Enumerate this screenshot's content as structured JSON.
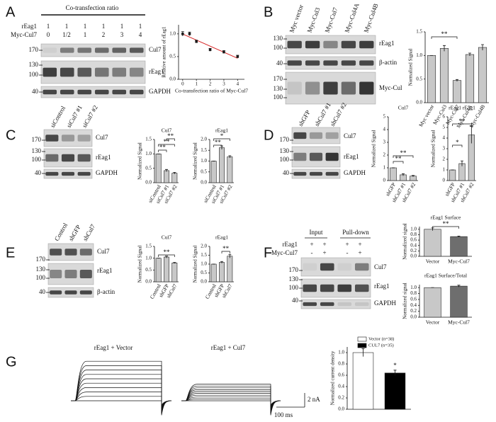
{
  "panel_letters": [
    "A",
    "B",
    "C",
    "D",
    "E",
    "F",
    "G"
  ],
  "blots": {
    "A": {
      "header": "Co-transfection ratio",
      "rows": [
        [
          "rEag1",
          "1",
          "1",
          "1",
          "1",
          "1",
          "1"
        ],
        [
          "Myc-Cul7",
          "0",
          "1/2",
          "1",
          "2",
          "3",
          "4"
        ]
      ],
      "markers": [
        "170",
        "130",
        "100",
        "40"
      ],
      "bands": [
        "Cul7",
        "rEag1",
        "GAPDH"
      ]
    },
    "B": {
      "lanes": [
        "Myc vector",
        "Myc-Cul3",
        "Myc-Cul7",
        "Myc-Cul4A",
        "Myc-Cul4B"
      ],
      "markers": [
        "130",
        "100",
        "40",
        "170",
        "130",
        "100"
      ],
      "bands": [
        "rEag1",
        "β-actin",
        "Myc-Cul"
      ]
    },
    "C": {
      "lanes": [
        "siControl",
        "siCul7 #1",
        "siCul7 #2"
      ],
      "markers": [
        "170",
        "130",
        "100",
        "40"
      ],
      "bands": [
        "Cul7",
        "rEag1",
        "GAPDH"
      ]
    },
    "D": {
      "lanes": [
        "shGFP",
        "shCul7 #1",
        "shCul7 #2"
      ],
      "markers": [
        "170",
        "130",
        "100",
        "40"
      ],
      "bands": [
        "Cul7",
        "rEag1",
        "GAPDH"
      ]
    },
    "E": {
      "lanes": [
        "Control",
        "shGFP",
        "shCul7"
      ],
      "markers": [
        "170",
        "130",
        "100",
        "40"
      ],
      "bands": [
        "Cul7",
        "rEag1",
        "β-actin"
      ]
    },
    "F": {
      "groups": [
        "Input",
        "Pull-down"
      ],
      "rows": [
        [
          "rEag1",
          "+",
          "+",
          "+",
          "+"
        ],
        [
          "Myc-Cul7",
          "-",
          "+",
          "-",
          "+"
        ]
      ],
      "markers": [
        "170",
        "130",
        "100",
        "40"
      ],
      "bands": [
        "Cul7",
        "rEag1",
        "GAPDH"
      ]
    }
  },
  "traces": {
    "titles": [
      "rEag1 + Vector",
      "rEag1 + Cul7"
    ],
    "scale": [
      "2 nA",
      "100 ms"
    ]
  },
  "chart_data": [
    {
      "type": "scatter",
      "x_label": "Co-transfection ratio of Myc-Cul7",
      "y_label": "Relative amount of rEag1",
      "x": [
        0,
        0.5,
        1,
        2,
        3,
        4
      ],
      "values": [
        1.0,
        1.0,
        0.83,
        0.65,
        0.6,
        0.5
      ],
      "errors": [
        0.05,
        0.04,
        0.03,
        0.03,
        0.03,
        0.03
      ],
      "color": "#222222",
      "line_color": "#d62020",
      "xlim": [
        -0.3,
        4.5
      ],
      "xticks": [
        0,
        1,
        2,
        3,
        4
      ],
      "ylim": [
        0,
        1.2
      ],
      "yticks": [
        {
          "value": 0,
          "label": "0.0"
        },
        0.5,
        {
          "value": 1,
          "label": "1.0"
        }
      ]
    },
    {
      "type": "bar",
      "y_label": "Normalized Signal",
      "categories": [
        "Myc vector",
        "Myc-Cul3",
        "Myc-Cul7",
        "Myc-Cul4A",
        "Myc-Cul4B"
      ],
      "values": [
        1.0,
        1.15,
        0.47,
        1.02,
        1.17
      ],
      "errors": [
        0,
        0.06,
        0.02,
        0.03,
        0.06
      ],
      "color": "#c8c8c8",
      "ylim": [
        0,
        1.5
      ],
      "yticks": [
        {
          "value": 0,
          "label": "0.0"
        },
        0.5,
        {
          "value": 1,
          "label": "1.0"
        },
        1.5
      ],
      "annotations": [
        "**"
      ]
    },
    {
      "type": "bar",
      "title": "Cul7",
      "y_label": "Normalized Signal",
      "categories": [
        "siControl",
        "siCul7 #1",
        "siCul7 #2"
      ],
      "values": [
        1.0,
        0.42,
        0.33
      ],
      "errors": [
        0,
        0.04,
        0.03
      ],
      "color": "#c8c8c8",
      "ylim": [
        0,
        1.5
      ],
      "yticks": [
        {
          "value": 0,
          "label": "0.0"
        },
        0.5,
        {
          "value": 1,
          "label": "1.0"
        },
        1.5
      ],
      "annotations": [
        "**",
        "**",
        "**"
      ]
    },
    {
      "type": "bar",
      "title": "rEag1",
      "y_label": "Normalized Signal",
      "categories": [
        "siControl",
        "siCul7 #1",
        "siCul7 #2"
      ],
      "values": [
        1.0,
        1.62,
        1.2
      ],
      "errors": [
        0,
        0.08,
        0.05
      ],
      "color": "#c8c8c8",
      "ylim": [
        0,
        2
      ],
      "yticks": [
        {
          "value": 0,
          "label": "0.0"
        },
        0.5,
        {
          "value": 1,
          "label": "1.0"
        },
        1.5,
        {
          "value": 2,
          "label": "2.0"
        }
      ],
      "annotations": [
        "**",
        "*"
      ]
    },
    {
      "type": "bar",
      "title": "Cul7",
      "y_label": "Normalized Signal",
      "categories": [
        "shGFP",
        "shCul7 #1",
        "shCul7 #2"
      ],
      "values": [
        1.0,
        0.45,
        0.35
      ],
      "errors": [
        0,
        0.08,
        0.05
      ],
      "color": "#c8c8c8",
      "ylim": [
        0,
        5
      ],
      "yticks": [
        0,
        1,
        2,
        3,
        4,
        5
      ],
      "annotations": [
        "**",
        "**"
      ]
    },
    {
      "type": "bar",
      "title": "rEag1 rEag1",
      "y_label": "Normalized Signal",
      "categories": [
        "shGFP",
        "shCul7 #1",
        "shCul7 #2"
      ],
      "values": [
        1.0,
        1.6,
        4.3
      ],
      "errors": [
        0,
        0.25,
        0.8
      ],
      "color": "#c8c8c8",
      "ylim": [
        0,
        6
      ],
      "yticks": [
        0,
        1,
        2,
        3,
        4,
        5,
        6
      ],
      "annotations": [
        "*",
        "**"
      ]
    },
    {
      "type": "bar",
      "title": "Cul7",
      "y_label": "Normalized Signal",
      "categories": [
        "Control",
        "shGFP",
        "shCul7"
      ],
      "values": [
        1.0,
        1.05,
        0.8
      ],
      "errors": [
        0,
        0.04,
        0.02
      ],
      "color": "#c8c8c8",
      "ylim": [
        0,
        1.5
      ],
      "yticks": [
        {
          "value": 0,
          "label": "0.0"
        },
        0.5,
        {
          "value": 1,
          "label": "1.0"
        },
        1.5
      ],
      "annotations": [
        "**"
      ]
    },
    {
      "type": "bar",
      "title": "rEag1",
      "y_label": "Normalized Signal",
      "categories": [
        "Control",
        "shGFP",
        "shCul7"
      ],
      "values": [
        1.0,
        1.1,
        1.45
      ],
      "errors": [
        0,
        0.05,
        0.1
      ],
      "color": "#c8c8c8",
      "ylim": [
        0,
        2
      ],
      "yticks": [
        {
          "value": 0,
          "label": "0.0"
        },
        0.5,
        {
          "value": 1,
          "label": "1.0"
        },
        1.5,
        {
          "value": 2,
          "label": "2.0"
        }
      ],
      "annotations": [
        "**"
      ]
    },
    {
      "type": "bar",
      "title": "rEag1 Surface",
      "y_label": "Normalized signal",
      "categories": [
        "Vector",
        "Myc-Cul7"
      ],
      "values": [
        1.0,
        0.73
      ],
      "errors": [
        0.05,
        0.02
      ],
      "colors": [
        "#c8c8c8",
        "#6e6e6e"
      ],
      "ylim": [
        0,
        1.1
      ],
      "yticks": [
        {
          "value": 0,
          "label": "0.0"
        },
        0.2,
        0.4,
        0.6,
        0.8,
        {
          "value": 1,
          "label": "1.0"
        }
      ],
      "annotations": [
        "**"
      ]
    },
    {
      "type": "bar",
      "title": "rEag1 Surface/Total",
      "y_label": "Normalized signal",
      "categories": [
        "Vector",
        "Myc-Cul7"
      ],
      "values": [
        1.0,
        1.05
      ],
      "errors": [
        0,
        0.03
      ],
      "colors": [
        "#c8c8c8",
        "#6e6e6e"
      ],
      "ylim": [
        0,
        1.1
      ],
      "yticks": [
        {
          "value": 0,
          "label": "0.0"
        },
        0.2,
        0.4,
        0.6,
        0.8,
        {
          "value": 1,
          "label": "1.0"
        }
      ]
    },
    {
      "type": "bar",
      "y_label": "Normalized current density",
      "categories": [
        "Vector (n=38)",
        "CUL7 (n=35)"
      ],
      "values": [
        1.0,
        0.64
      ],
      "errors": [
        0.07,
        0.05
      ],
      "colors": [
        "#ffffff",
        "#000000"
      ],
      "legend": true,
      "ylim": [
        0,
        1.1
      ],
      "yticks": [
        {
          "value": 0,
          "label": "0.0"
        },
        0.2,
        0.4,
        0.6,
        0.8,
        {
          "value": 1,
          "label": "1.0"
        }
      ],
      "annotations": [
        "*"
      ]
    }
  ]
}
